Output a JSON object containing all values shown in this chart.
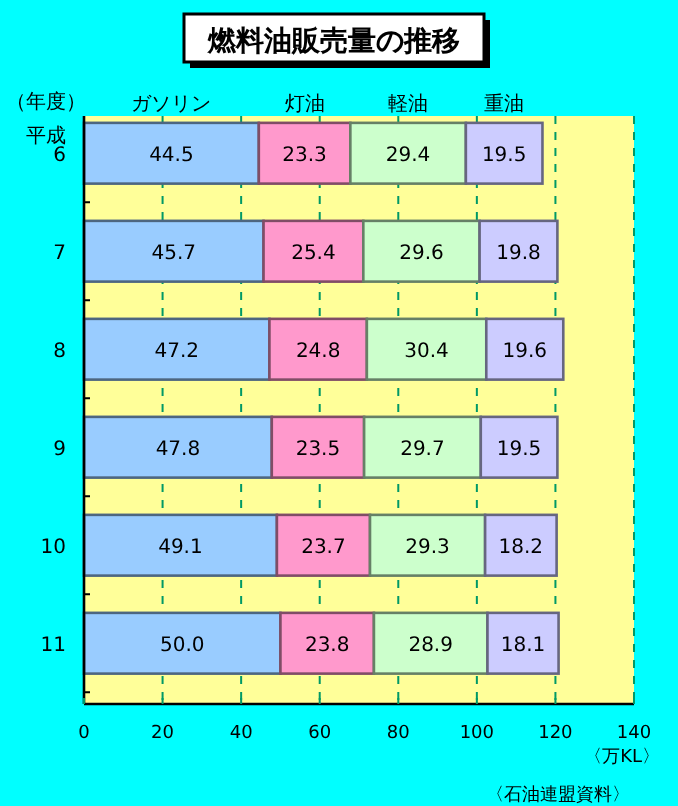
{
  "chart_data": {
    "type": "bar",
    "orientation": "horizontal",
    "stacked": true,
    "title": "燃料油販売量の推移",
    "ylabel": "（年度）",
    "xlabel": "〈万KL〉",
    "annotations": [
      "平成",
      "〈石油連盟資料〉"
    ],
    "categories": [
      "6",
      "7",
      "8",
      "9",
      "10",
      "11"
    ],
    "series": [
      {
        "name": "ガソリン",
        "color": "#99ccff",
        "values": [
          44.5,
          45.7,
          47.2,
          47.8,
          49.1,
          50.0
        ],
        "value_labels": [
          "44.5",
          "45.7",
          "47.2",
          "47.8",
          "49.1",
          "50.0"
        ]
      },
      {
        "name": "灯油",
        "color": "#ff99cc",
        "values": [
          23.3,
          25.4,
          24.8,
          23.5,
          23.7,
          23.8
        ],
        "value_labels": [
          "23.3",
          "25.4",
          "24.8",
          "23.5",
          "23.7",
          "23.8"
        ]
      },
      {
        "name": "軽油",
        "color": "#ccffcc",
        "values": [
          29.4,
          29.6,
          30.4,
          29.7,
          29.3,
          28.9
        ],
        "value_labels": [
          "29.4",
          "29.6",
          "30.4",
          "29.7",
          "29.3",
          "28.9"
        ]
      },
      {
        "name": "重油",
        "color": "#ccccff",
        "values": [
          19.5,
          19.8,
          19.6,
          19.5,
          18.2,
          18.1
        ],
        "value_labels": [
          "19.5",
          "19.8",
          "19.6",
          "19.5",
          "18.2",
          "18.1"
        ]
      }
    ],
    "xlim": [
      0,
      140
    ],
    "xticks": [
      0,
      20,
      40,
      60,
      80,
      100,
      120,
      140
    ],
    "grid": "x",
    "legend": "top"
  }
}
